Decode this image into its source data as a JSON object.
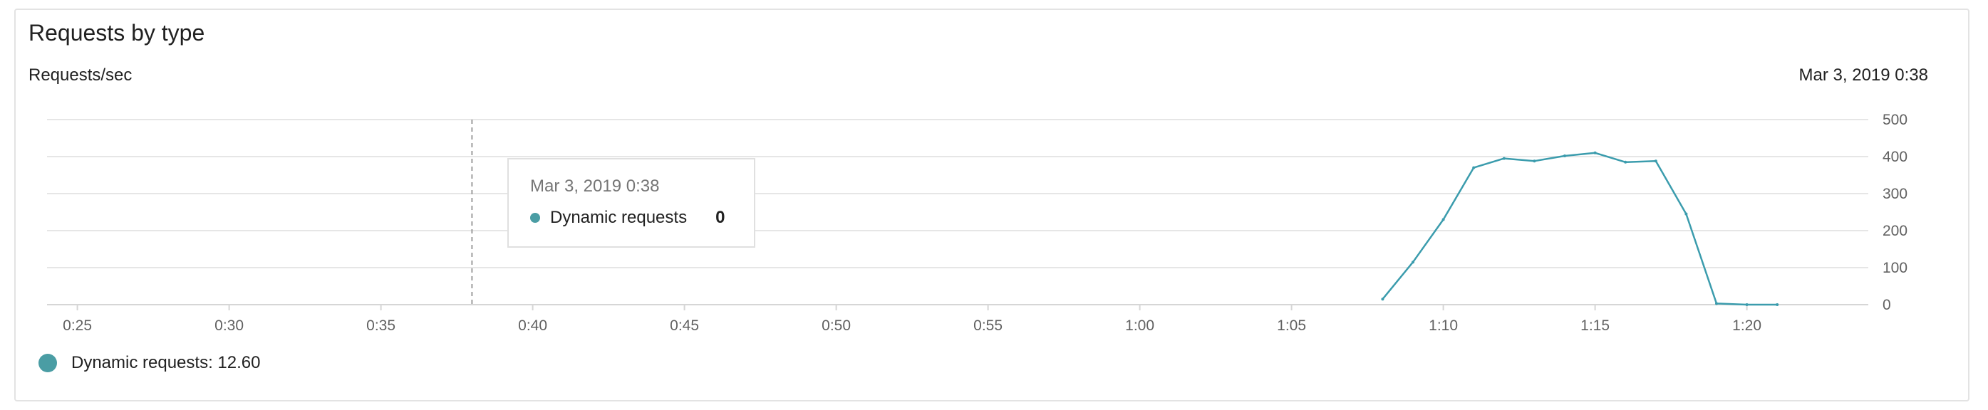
{
  "card": {
    "title": "Requests by type"
  },
  "colors": {
    "series": "#3b9cad",
    "grid": "#e6e6e6",
    "axis": "#d6d6d6",
    "legend_dot": "#4a9da4"
  },
  "chart_data": {
    "type": "line",
    "title": "Requests by type",
    "ylabel": "Requests/sec",
    "header_timestamp": "Mar 3, 2019 0:38",
    "x_tick_labels": [
      "0:25",
      "0:30",
      "0:35",
      "0:40",
      "0:45",
      "0:50",
      "0:55",
      "1:00",
      "1:05",
      "1:10",
      "1:15",
      "1:20"
    ],
    "y_tick_labels": [
      "500",
      "400",
      "300",
      "200",
      "100",
      "0"
    ],
    "xlim": [
      "0:24",
      "1:24"
    ],
    "ylim": [
      0,
      500
    ],
    "grid": true,
    "y_axis_side": "right",
    "legend_position": "bottom-left",
    "series": [
      {
        "name": "Dynamic requests",
        "x": [
          "1:08",
          "1:09",
          "1:10",
          "1:11",
          "1:12",
          "1:13",
          "1:14",
          "1:15",
          "1:16",
          "1:17",
          "1:18",
          "1:19",
          "1:20",
          "1:21"
        ],
        "values": [
          15,
          115,
          230,
          370,
          395,
          388,
          402,
          410,
          385,
          388,
          245,
          3,
          0,
          0
        ]
      }
    ],
    "cursor_time": "0:38"
  },
  "tooltip": {
    "time": "Mar 3, 2019 0:38",
    "series_label": "Dynamic requests",
    "value": "0"
  },
  "legend": {
    "label": "Dynamic requests: 12.60"
  }
}
